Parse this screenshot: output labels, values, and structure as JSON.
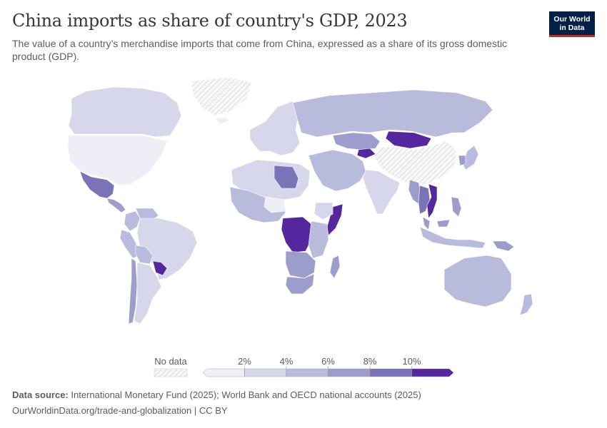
{
  "header": {
    "title": "China imports as share of country's GDP, 2023",
    "subtitle": "The value of a country’s merchandise imports that come from China, expressed as a share of its gross domestic product (GDP)."
  },
  "logo": {
    "line1": "Our World",
    "line2": "in Data"
  },
  "legend": {
    "no_data_label": "No data",
    "ticks": [
      "2%",
      "4%",
      "6%",
      "8%",
      "10%"
    ],
    "colors": [
      "#eeeef6",
      "#d6d7ea",
      "#b9bbdd",
      "#9d9dcb",
      "#7b73b8",
      "#54279e"
    ],
    "no_data_color": "#f0f0f0"
  },
  "footer": {
    "source_label": "Data source:",
    "source_text": "International Monetary Fund (2025); World Bank and OECD national accounts (2025)",
    "url": "OurWorldinData.org/trade-and-globalization | CC BY"
  },
  "map_data": {
    "variable": "China imports as share of GDP (%)",
    "year": 2023,
    "regions": [
      {
        "name": "Canada",
        "bin": 1
      },
      {
        "name": "United States",
        "bin": 0
      },
      {
        "name": "Mexico",
        "bin": 4
      },
      {
        "name": "Central America",
        "bin": 3
      },
      {
        "name": "Colombia",
        "bin": 2
      },
      {
        "name": "Venezuela",
        "bin": 2
      },
      {
        "name": "Peru",
        "bin": 2
      },
      {
        "name": "Brazil",
        "bin": 1
      },
      {
        "name": "Bolivia",
        "bin": 2
      },
      {
        "name": "Paraguay",
        "bin": 5
      },
      {
        "name": "Chile",
        "bin": 3
      },
      {
        "name": "Argentina",
        "bin": 1
      },
      {
        "name": "Greenland",
        "bin": -1
      },
      {
        "name": "Iceland",
        "bin": 0
      },
      {
        "name": "Europe",
        "bin": 1
      },
      {
        "name": "Russia",
        "bin": 2
      },
      {
        "name": "Kazakhstan",
        "bin": 3
      },
      {
        "name": "Kyrgyzstan",
        "bin": 5
      },
      {
        "name": "Mongolia",
        "bin": 5
      },
      {
        "name": "China",
        "bin": -1
      },
      {
        "name": "India",
        "bin": 1
      },
      {
        "name": "Middle East",
        "bin": 2
      },
      {
        "name": "North Africa",
        "bin": 1
      },
      {
        "name": "Libya",
        "bin": 4
      },
      {
        "name": "West Africa",
        "bin": 2
      },
      {
        "name": "Niger",
        "bin": 0
      },
      {
        "name": "Somalia",
        "bin": 5
      },
      {
        "name": "Ethiopia",
        "bin": 1
      },
      {
        "name": "DR Congo",
        "bin": 5
      },
      {
        "name": "East Africa",
        "bin": 2
      },
      {
        "name": "Southern Africa",
        "bin": 3
      },
      {
        "name": "South Africa",
        "bin": 3
      },
      {
        "name": "Madagascar",
        "bin": 3
      },
      {
        "name": "Myanmar",
        "bin": 3
      },
      {
        "name": "Thailand",
        "bin": 4
      },
      {
        "name": "Vietnam",
        "bin": 5
      },
      {
        "name": "Malaysia",
        "bin": 3
      },
      {
        "name": "Indonesia",
        "bin": 2
      },
      {
        "name": "Philippines",
        "bin": 3
      },
      {
        "name": "Japan",
        "bin": 2
      },
      {
        "name": "South Korea",
        "bin": 3
      },
      {
        "name": "Australia",
        "bin": 2
      },
      {
        "name": "New Zealand",
        "bin": 2
      },
      {
        "name": "Papua New Guinea",
        "bin": 3
      }
    ]
  }
}
